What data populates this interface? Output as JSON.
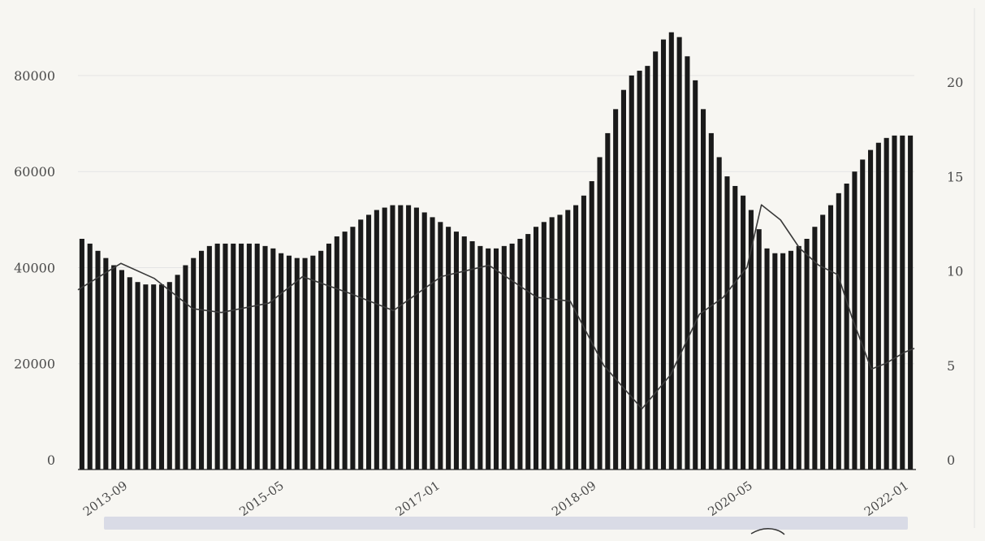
{
  "chart_data": {
    "type": "bar",
    "x_tick_labels": [
      "2013-09",
      "2015-05",
      "2017-01",
      "2018-09",
      "2020-05",
      "2022-01"
    ],
    "y_left_ticks": [
      0,
      20000,
      40000,
      60000,
      80000
    ],
    "y_right_ticks": [
      0,
      5,
      10,
      15,
      20
    ],
    "ylim_left": [
      0,
      92000
    ],
    "ylim_right": [
      0,
      23.4
    ],
    "grid": true,
    "legend": "none",
    "colors": {
      "bar": "#1a1a1a",
      "line": "#3a3a3a",
      "grid": "#e4e4e4",
      "background": "#f7f6f2",
      "scrollbar": "#d9dbe6"
    },
    "series": [
      {
        "type": "bar",
        "axis": "left",
        "values": [
          46000,
          45000,
          43500,
          42000,
          40500,
          39500,
          38000,
          37000,
          36500,
          36500,
          36500,
          37000,
          38500,
          40500,
          42000,
          43500,
          44500,
          45000,
          45000,
          45000,
          45000,
          45000,
          45000,
          44500,
          44000,
          43000,
          42500,
          42000,
          42000,
          42500,
          43500,
          45000,
          46500,
          47500,
          48500,
          50000,
          51000,
          52000,
          52500,
          53000,
          53000,
          53000,
          52500,
          51500,
          50500,
          49500,
          48500,
          47500,
          46500,
          45500,
          44500,
          44000,
          44000,
          44500,
          45000,
          46000,
          47000,
          48500,
          49500,
          50500,
          51000,
          52000,
          53000,
          55000,
          58000,
          63000,
          68000,
          73000,
          77000,
          80000,
          81000,
          82000,
          85000,
          87500,
          89000,
          88000,
          84000,
          79000,
          73000,
          68000,
          63000,
          59000,
          57000,
          55000,
          52000,
          48000,
          44000,
          43000,
          43000,
          43500,
          44500,
          46000,
          48500,
          51000,
          53000,
          55500,
          57500,
          60000,
          62500,
          64500,
          66000,
          67000,
          67500,
          67500,
          67500
        ]
      },
      {
        "type": "line",
        "axis": "right",
        "points": [
          [
            0,
            9.0
          ],
          [
            9,
            10.4
          ],
          [
            16,
            9.6
          ],
          [
            24,
            8.0
          ],
          [
            30,
            7.8
          ],
          [
            40,
            8.3
          ],
          [
            47,
            9.7
          ],
          [
            57,
            8.8
          ],
          [
            66,
            7.9
          ],
          [
            76,
            9.7
          ],
          [
            86,
            10.3
          ],
          [
            96,
            8.6
          ],
          [
            103,
            8.4
          ],
          [
            110,
            5.0
          ],
          [
            118,
            2.7
          ],
          [
            124,
            4.5
          ],
          [
            130,
            7.7
          ],
          [
            135,
            8.6
          ],
          [
            140,
            10.2
          ],
          [
            143,
            13.5
          ],
          [
            147,
            12.7
          ],
          [
            151,
            11.2
          ],
          [
            155,
            10.3
          ],
          [
            159,
            9.8
          ],
          [
            162,
            7.5
          ],
          [
            166,
            4.8
          ],
          [
            169,
            5.1
          ],
          [
            173,
            5.7
          ],
          [
            175,
            5.9
          ]
        ]
      }
    ]
  }
}
